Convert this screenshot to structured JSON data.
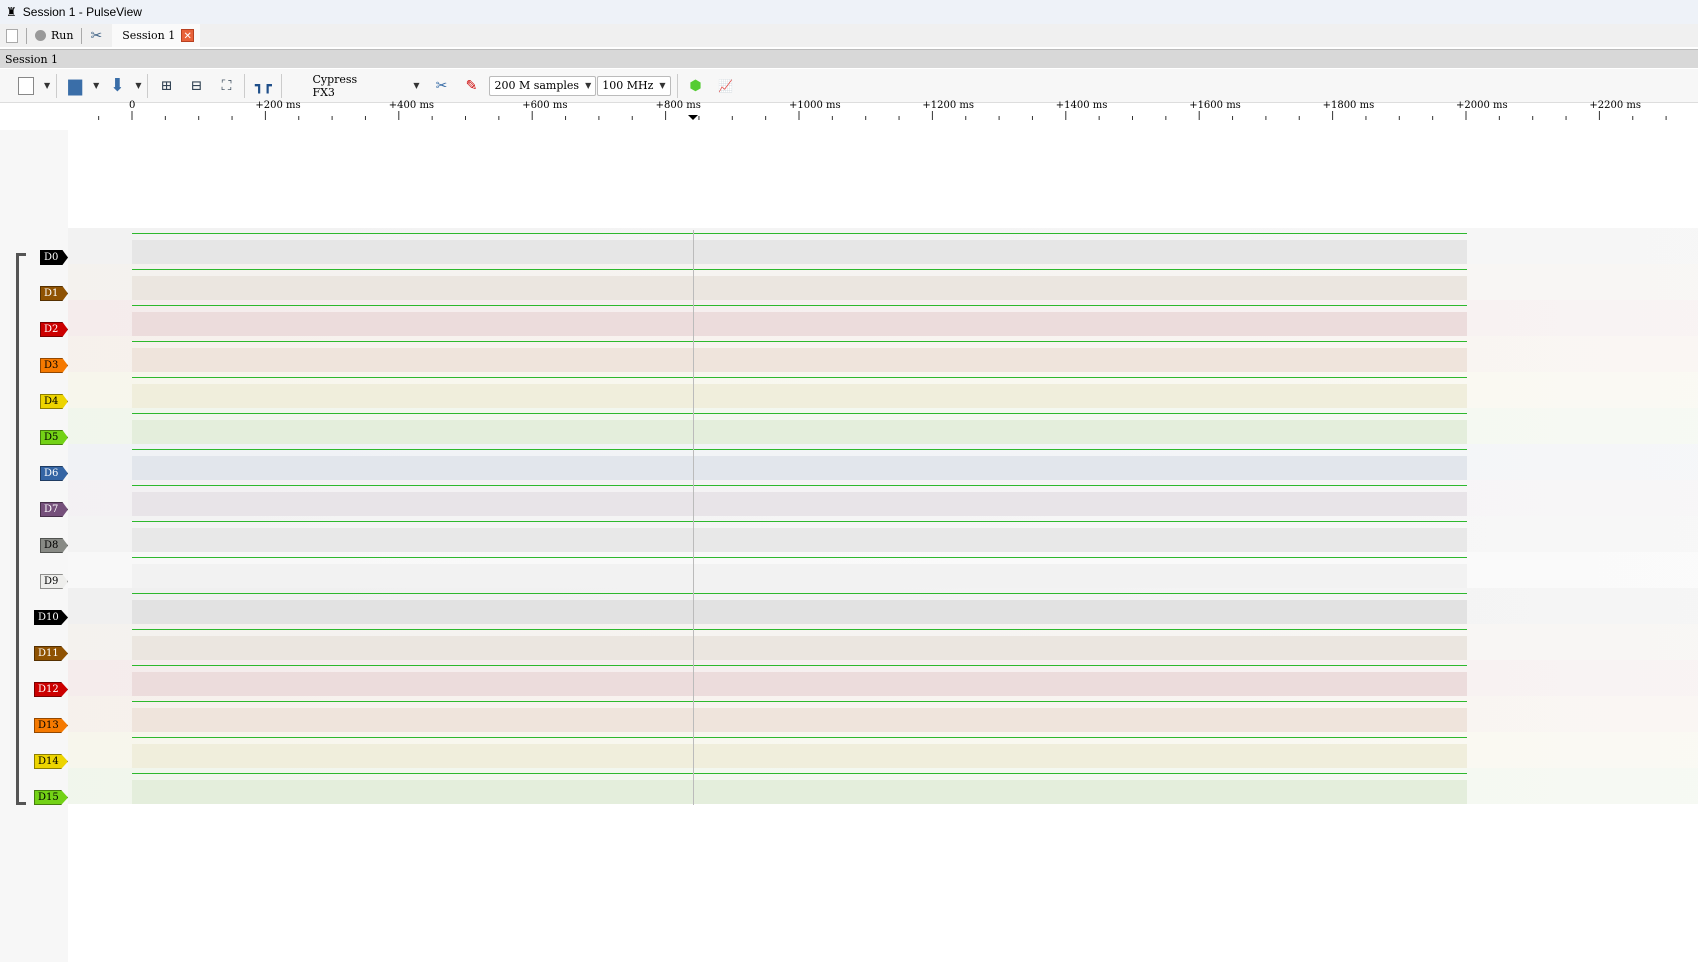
{
  "window": {
    "title": "Session 1 - PulseView"
  },
  "tabbar": {
    "run_label": "Run",
    "session_tab": "Session 1"
  },
  "session_header": "Session 1",
  "toolbar": {
    "device": "Cypress FX3",
    "samples": "200 M samples",
    "samplerate": "100 MHz"
  },
  "ruler": {
    "labels": [
      "0",
      "+200 ms",
      "+400 ms",
      "+600 ms",
      "+800 ms",
      "+1000 ms",
      "+1200 ms",
      "+1400 ms",
      "+1600 ms",
      "+1800 ms",
      "+2000 ms",
      "+2200 ms"
    ]
  },
  "channels": [
    {
      "name": "D0",
      "color": "#000000",
      "text": "#ffffff",
      "tint": "#e6e6e6"
    },
    {
      "name": "D1",
      "color": "#8f5202",
      "text": "#ffffff",
      "tint": "#ebe6e0"
    },
    {
      "name": "D2",
      "color": "#cc0000",
      "text": "#ffffff",
      "tint": "#ecdcdc"
    },
    {
      "name": "D3",
      "color": "#f57900",
      "text": "#000000",
      "tint": "#efe4dc"
    },
    {
      "name": "D4",
      "color": "#edd400",
      "text": "#000000",
      "tint": "#f0eedc"
    },
    {
      "name": "D5",
      "color": "#73d216",
      "text": "#000000",
      "tint": "#e4eedc"
    },
    {
      "name": "D6",
      "color": "#3465a4",
      "text": "#ffffff",
      "tint": "#e2e6ec"
    },
    {
      "name": "D7",
      "color": "#75507b",
      "text": "#ffffff",
      "tint": "#e8e4e8"
    },
    {
      "name": "D8",
      "color": "#888a85",
      "text": "#000000",
      "tint": "#e8e8e8"
    },
    {
      "name": "D9",
      "color": "#eeeeec",
      "text": "#000000",
      "tint": "#f2f2f2"
    },
    {
      "name": "D10",
      "color": "#000000",
      "text": "#ffffff",
      "tint": "#e2e2e2"
    },
    {
      "name": "D11",
      "color": "#8f5202",
      "text": "#ffffff",
      "tint": "#ebe6e0"
    },
    {
      "name": "D12",
      "color": "#cc0000",
      "text": "#ffffff",
      "tint": "#ecdcdc"
    },
    {
      "name": "D13",
      "color": "#f57900",
      "text": "#000000",
      "tint": "#efe4dc"
    },
    {
      "name": "D14",
      "color": "#edd400",
      "text": "#000000",
      "tint": "#f0eedc"
    },
    {
      "name": "D15",
      "color": "#73d216",
      "text": "#000000",
      "tint": "#e4eedc"
    }
  ]
}
